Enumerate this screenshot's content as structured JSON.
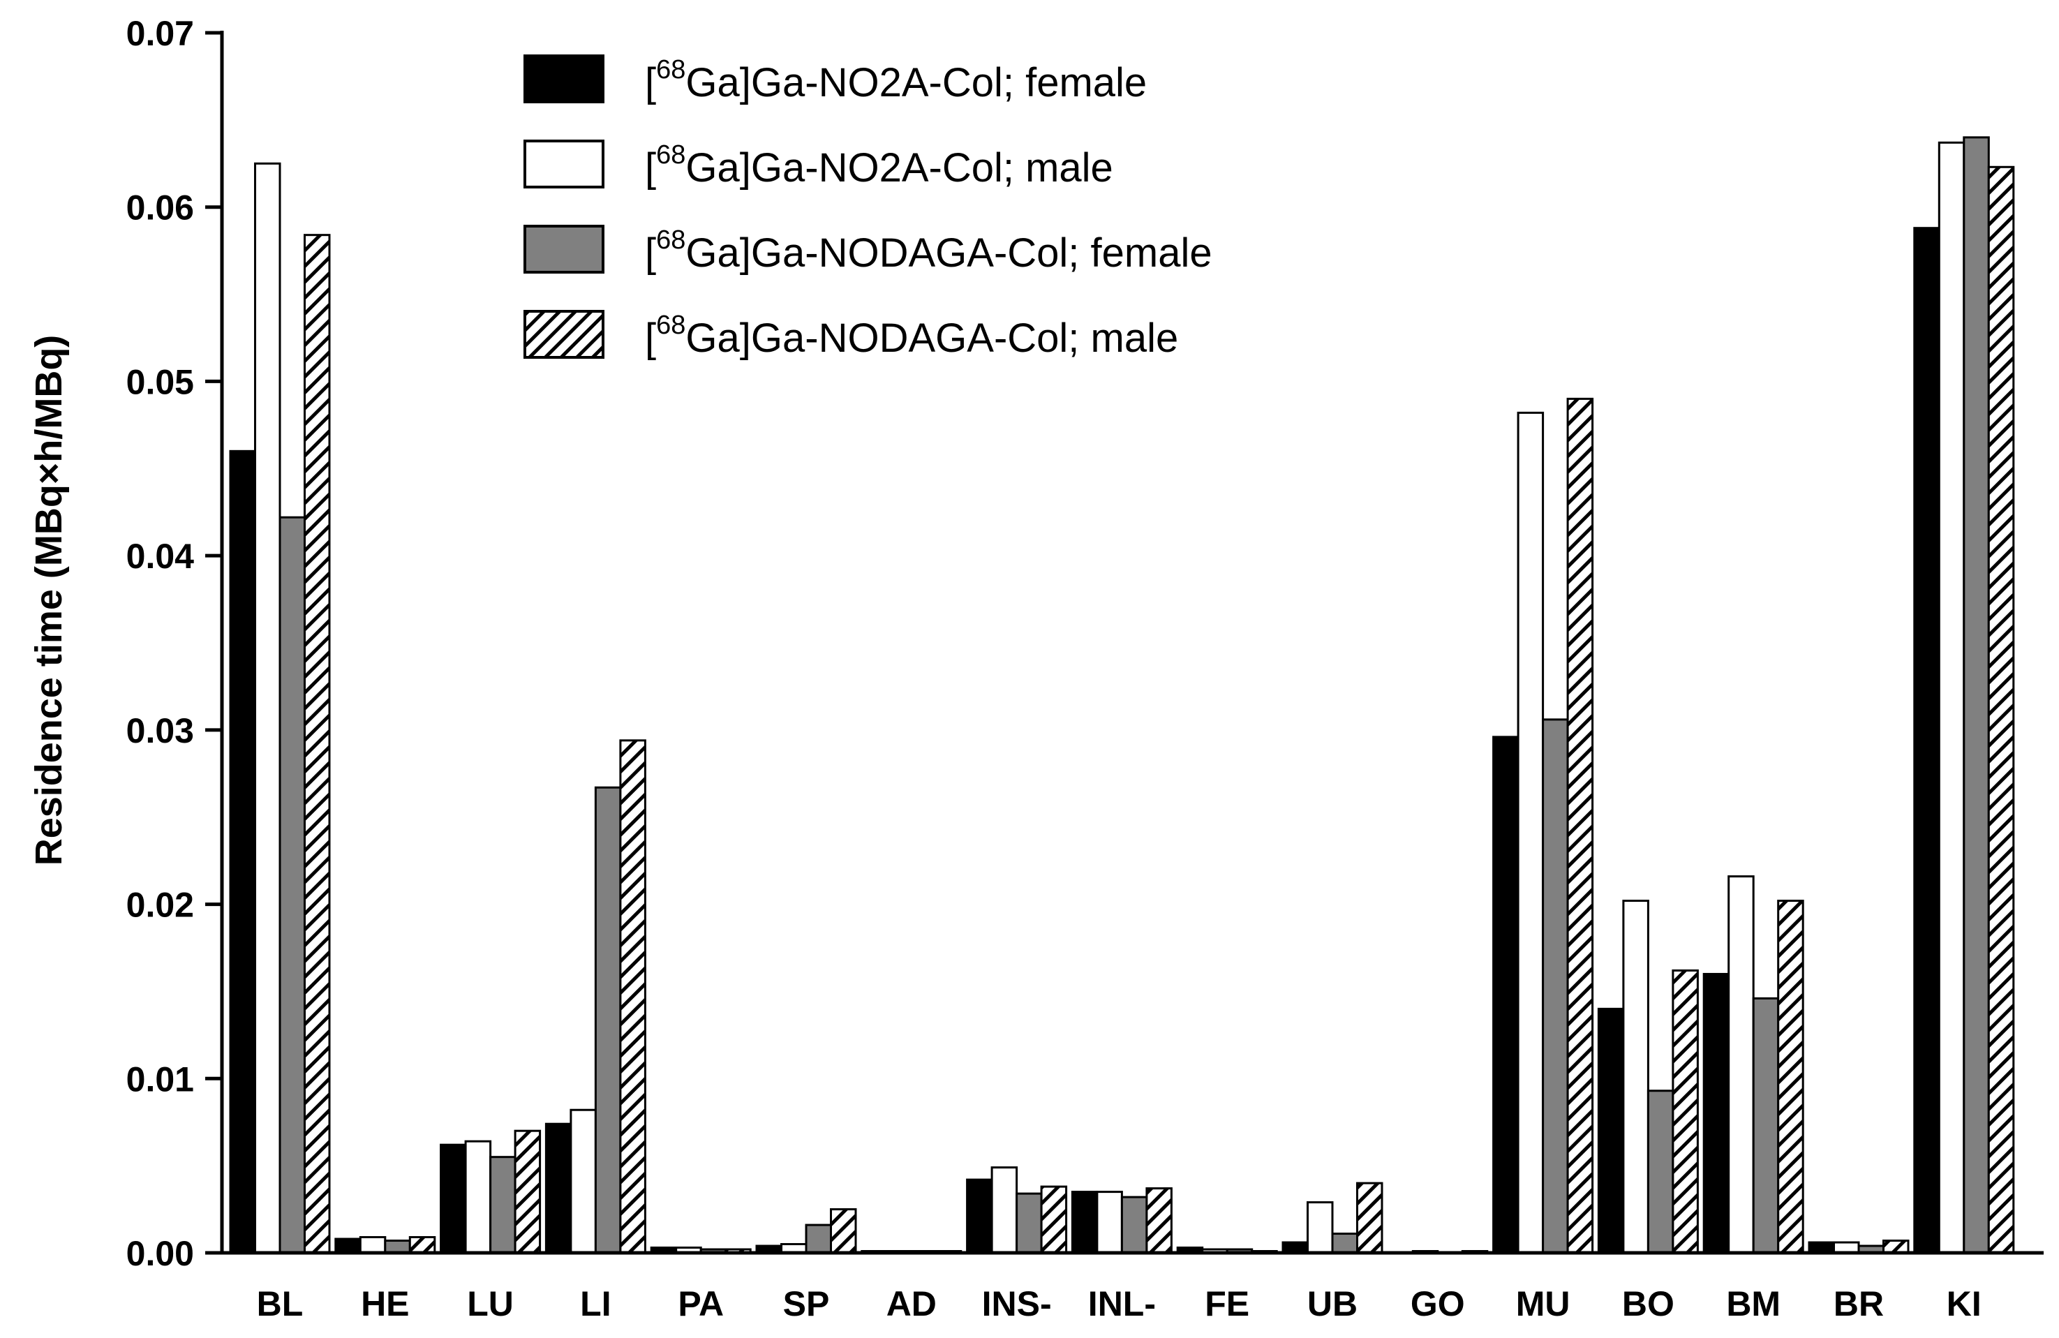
{
  "chart_data": {
    "type": "bar",
    "title": "",
    "xlabel": "",
    "ylabel": "Residence time (MBq×h/MBq)",
    "ylim": [
      0,
      0.07
    ],
    "yticks": [
      "0.00",
      "0.01",
      "0.02",
      "0.03",
      "0.04",
      "0.05",
      "0.06",
      "0.07"
    ],
    "ytick_values": [
      0,
      0.01,
      0.02,
      0.03,
      0.04,
      0.05,
      0.06,
      0.07
    ],
    "legend_position": "top-center",
    "grid": false,
    "categories": [
      "BL",
      "HE",
      "LU",
      "LI",
      "PA",
      "SP",
      "AD",
      "INS-",
      "INL-",
      "FE",
      "UB",
      "GO",
      "MU",
      "BO",
      "BM",
      "BR",
      "KI"
    ],
    "series": [
      {
        "name": "[68Ga]Ga-NO2A-Col; female",
        "legend_prefix": "[",
        "legend_sup": "68",
        "legend_rest": "Ga]Ga-NO2A-Col; female",
        "fill": "#000000",
        "pattern": "solid",
        "values": [
          0.046,
          0.0008,
          0.0062,
          0.0074,
          0.0003,
          0.0004,
          0.0001,
          0.0042,
          0.0035,
          0.0003,
          0.0006,
          0.0,
          0.0296,
          0.014,
          0.016,
          0.0006,
          0.0588
        ]
      },
      {
        "name": "[68Ga]Ga-NO2A-Col; male",
        "legend_prefix": "[",
        "legend_sup": "68",
        "legend_rest": "Ga]Ga-NO2A-Col; male",
        "fill": "#ffffff",
        "pattern": "solid",
        "values": [
          0.0625,
          0.0009,
          0.0064,
          0.0082,
          0.0003,
          0.0005,
          0.0001,
          0.0049,
          0.0035,
          0.0002,
          0.0029,
          0.0001,
          0.0482,
          0.0202,
          0.0216,
          0.0006,
          0.0637
        ]
      },
      {
        "name": "[68Ga]Ga-NODAGA-Col; female",
        "legend_prefix": "[",
        "legend_sup": "68",
        "legend_rest": "Ga]Ga-NODAGA-Col; female",
        "fill": "#808080",
        "pattern": "solid",
        "values": [
          0.0422,
          0.0007,
          0.0055,
          0.0267,
          0.0002,
          0.0016,
          0.0001,
          0.0034,
          0.0032,
          0.0002,
          0.0011,
          0.0,
          0.0306,
          0.0093,
          0.0146,
          0.0004,
          0.064
        ]
      },
      {
        "name": "[68Ga]Ga-NODAGA-Col; male",
        "legend_prefix": "[",
        "legend_sup": "68",
        "legend_rest": "Ga]Ga-NODAGA-Col; male",
        "fill": "#ffffff",
        "pattern": "hatched",
        "values": [
          0.0584,
          0.0009,
          0.007,
          0.0294,
          0.0002,
          0.0025,
          0.0001,
          0.0038,
          0.0037,
          0.0001,
          0.004,
          0.0001,
          0.049,
          0.0162,
          0.0202,
          0.0007,
          0.0623
        ]
      }
    ]
  }
}
